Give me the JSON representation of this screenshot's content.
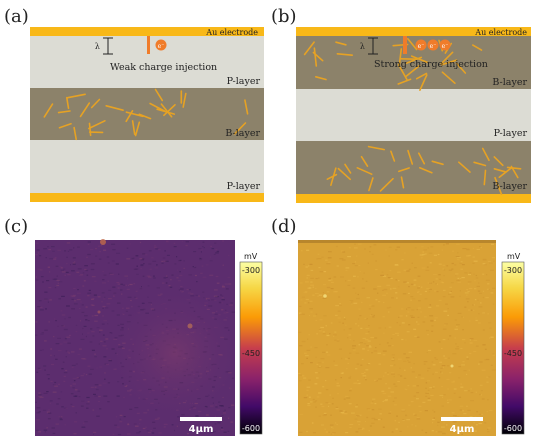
{
  "panels": {
    "a": {
      "label": "(a)",
      "electrode": "Au electrode",
      "lambda": "λ",
      "injection_text": "Weak charge injection",
      "electron": "e⁻",
      "layers": [
        "P-layer",
        "B-layer",
        "P-layer"
      ]
    },
    "b": {
      "label": "(b)",
      "electrode": "Au electrode",
      "lambda": "λ",
      "injection_text": "Strong charge injection",
      "electrons": [
        "e⁻",
        "e⁻",
        "e⁻"
      ],
      "layers": [
        "B-layer",
        "P-layer",
        "B-layer"
      ]
    },
    "c": {
      "label": "(c)",
      "colorbar": {
        "unit": "mV",
        "ticks": [
          "-300",
          "-450",
          "-600"
        ]
      },
      "scalebar": "4μm"
    },
    "d": {
      "label": "(d)",
      "colorbar": {
        "unit": "mV",
        "ticks": [
          "-300",
          "-450",
          "-600"
        ]
      },
      "scalebar": "4μm"
    }
  },
  "colors": {
    "gold": "#f8b818",
    "p_layer": "#dcdcd4",
    "b_layer": "#8c826a",
    "rod": "#e6a224",
    "map_c": "#5c2d6e",
    "map_d": "#d9a236"
  }
}
